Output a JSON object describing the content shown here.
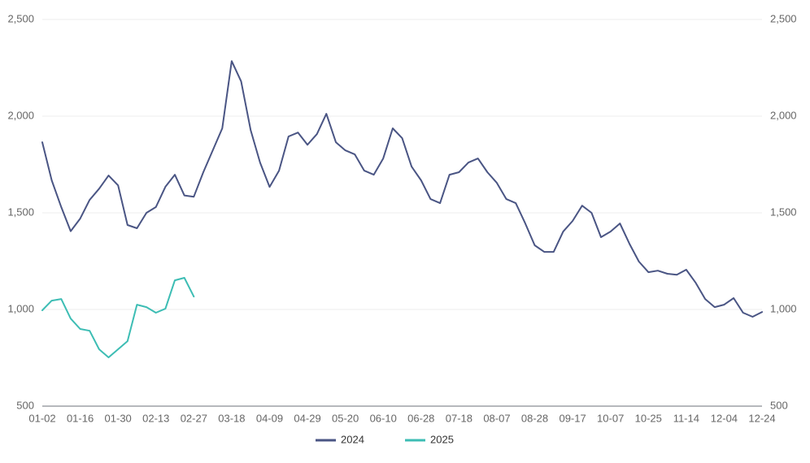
{
  "chart_data": {
    "type": "line",
    "categories": [
      "01-02",
      null,
      null,
      null,
      "01-16",
      null,
      null,
      null,
      "01-30",
      null,
      null,
      null,
      "02-13",
      null,
      null,
      null,
      "02-27",
      null,
      null,
      null,
      "03-18",
      null,
      null,
      null,
      "04-09",
      null,
      null,
      null,
      "04-29",
      null,
      null,
      null,
      "05-20",
      null,
      null,
      null,
      "06-10",
      null,
      null,
      null,
      "06-28",
      null,
      null,
      null,
      "07-18",
      null,
      null,
      null,
      "08-07",
      null,
      null,
      null,
      "08-28",
      null,
      null,
      null,
      "09-17",
      null,
      null,
      null,
      "10-07",
      null,
      null,
      null,
      "10-25",
      null,
      null,
      null,
      "11-14",
      null,
      null,
      null,
      "12-04",
      null,
      null,
      null,
      "12-24"
    ],
    "series": [
      {
        "name": "2024",
        "color": "#4a5584",
        "values": [
          1865,
          1668,
          1530,
          1405,
          1470,
          1567,
          1625,
          1693,
          1642,
          1437,
          1420,
          1500,
          1530,
          1635,
          1697,
          1590,
          1583,
          1710,
          1823,
          1937,
          2285,
          2180,
          1928,
          1760,
          1634,
          1718,
          1895,
          1915,
          1852,
          1907,
          2012,
          1865,
          1823,
          1802,
          1718,
          1697,
          1781,
          1937,
          1886,
          1739,
          1668,
          1571,
          1550,
          1697,
          1710,
          1760,
          1781,
          1710,
          1655,
          1571,
          1550,
          1445,
          1332,
          1298,
          1298,
          1403,
          1458,
          1537,
          1500,
          1374,
          1403,
          1445,
          1340,
          1248,
          1193,
          1201,
          1185,
          1180,
          1206,
          1138,
          1054,
          1012,
          1025,
          1059,
          983,
          962,
          987
        ]
      },
      {
        "name": "2025",
        "color": "#3dbdb4",
        "values": [
          996,
          1046,
          1054,
          953,
          899,
          890,
          794,
          752,
          794,
          836,
          1025,
          1012,
          983,
          1004,
          1151,
          1164,
          1067,
          null,
          null,
          null,
          null,
          null,
          null,
          null,
          null,
          null,
          null,
          null,
          null,
          null,
          null,
          null,
          null,
          null,
          null,
          null,
          null,
          null,
          null,
          null,
          null,
          null,
          null,
          null,
          null,
          null,
          null,
          null,
          null,
          null,
          null,
          null,
          null,
          null,
          null,
          null,
          null,
          null,
          null,
          null,
          null,
          null,
          null,
          null,
          null,
          null,
          null,
          null,
          null,
          null,
          null,
          null,
          null,
          null,
          null,
          null,
          null
        ]
      }
    ],
    "ylim": [
      500,
      2500
    ],
    "yticks": [
      500,
      {
        "value": 1000,
        "label": "1,000"
      },
      {
        "value": 1500,
        "label": "1,500"
      },
      {
        "value": 2000,
        "label": "2,000"
      },
      {
        "value": 2500,
        "label": "2,500"
      }
    ],
    "y2lim": [
      500,
      2500
    ],
    "y2ticks": [
      500,
      {
        "value": 1000,
        "label": "1,000"
      },
      {
        "value": 1500,
        "label": "1,500"
      },
      {
        "value": 2000,
        "label": "2,000"
      },
      {
        "value": 2500,
        "label": "2,500"
      }
    ],
    "grid": true,
    "legend": "bottom"
  }
}
